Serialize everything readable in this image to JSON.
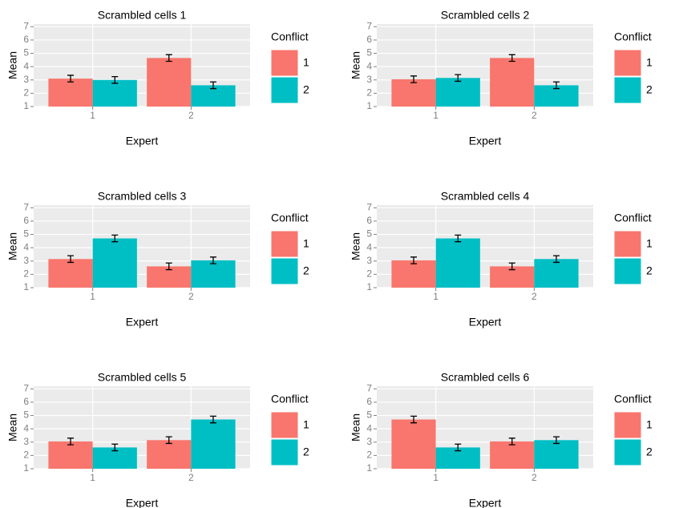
{
  "chart_data": [
    {
      "type": "bar",
      "title": "Scrambled cells 1",
      "x_label": "Expert",
      "y_label": "Mean",
      "legend_title": "Conflict",
      "categories": [
        "1",
        "2"
      ],
      "series": [
        {
          "name": "1",
          "color": "#F8766D",
          "values": [
            3.1,
            4.65
          ],
          "errors": [
            0.25,
            0.25
          ]
        },
        {
          "name": "2",
          "color": "#00BFC4",
          "values": [
            3.0,
            2.6
          ],
          "errors": [
            0.25,
            0.25
          ]
        }
      ],
      "ylim": [
        1,
        7.2
      ],
      "yticks": [
        1,
        2,
        3,
        4,
        5,
        6,
        7
      ],
      "grid": true
    },
    {
      "type": "bar",
      "title": "Scrambled cells 2",
      "x_label": "Expert",
      "y_label": "Mean",
      "legend_title": "Conflict",
      "categories": [
        "1",
        "2"
      ],
      "series": [
        {
          "name": "1",
          "color": "#F8766D",
          "values": [
            3.05,
            4.65
          ],
          "errors": [
            0.25,
            0.25
          ]
        },
        {
          "name": "2",
          "color": "#00BFC4",
          "values": [
            3.15,
            2.6
          ],
          "errors": [
            0.25,
            0.25
          ]
        }
      ],
      "ylim": [
        1,
        7.2
      ],
      "yticks": [
        1,
        2,
        3,
        4,
        5,
        6,
        7
      ],
      "grid": true
    },
    {
      "type": "bar",
      "title": "Scrambled cells 3",
      "x_label": "Expert",
      "y_label": "Mean",
      "legend_title": "Conflict",
      "categories": [
        "1",
        "2"
      ],
      "series": [
        {
          "name": "1",
          "color": "#F8766D",
          "values": [
            3.15,
            2.6
          ],
          "errors": [
            0.25,
            0.25
          ]
        },
        {
          "name": "2",
          "color": "#00BFC4",
          "values": [
            4.7,
            3.05
          ],
          "errors": [
            0.25,
            0.25
          ]
        }
      ],
      "ylim": [
        1,
        7.2
      ],
      "yticks": [
        1,
        2,
        3,
        4,
        5,
        6,
        7
      ],
      "grid": true
    },
    {
      "type": "bar",
      "title": "Scrambled cells 4",
      "x_label": "Expert",
      "y_label": "Mean",
      "legend_title": "Conflict",
      "categories": [
        "1",
        "2"
      ],
      "series": [
        {
          "name": "1",
          "color": "#F8766D",
          "values": [
            3.05,
            2.6
          ],
          "errors": [
            0.25,
            0.25
          ]
        },
        {
          "name": "2",
          "color": "#00BFC4",
          "values": [
            4.7,
            3.15
          ],
          "errors": [
            0.25,
            0.25
          ]
        }
      ],
      "ylim": [
        1,
        7.2
      ],
      "yticks": [
        1,
        2,
        3,
        4,
        5,
        6,
        7
      ],
      "grid": true
    },
    {
      "type": "bar",
      "title": "Scrambled cells 5",
      "x_label": "Expert",
      "y_label": "Mean",
      "legend_title": "Conflict",
      "categories": [
        "1",
        "2"
      ],
      "series": [
        {
          "name": "1",
          "color": "#F8766D",
          "values": [
            3.05,
            3.15
          ],
          "errors": [
            0.25,
            0.25
          ]
        },
        {
          "name": "2",
          "color": "#00BFC4",
          "values": [
            2.6,
            4.7
          ],
          "errors": [
            0.25,
            0.25
          ]
        }
      ],
      "ylim": [
        1,
        7.2
      ],
      "yticks": [
        1,
        2,
        3,
        4,
        5,
        6,
        7
      ],
      "grid": true
    },
    {
      "type": "bar",
      "title": "Scrambled cells 6",
      "x_label": "Expert",
      "y_label": "Mean",
      "legend_title": "Conflict",
      "categories": [
        "1",
        "2"
      ],
      "series": [
        {
          "name": "1",
          "color": "#F8766D",
          "values": [
            4.7,
            3.05
          ],
          "errors": [
            0.25,
            0.25
          ]
        },
        {
          "name": "2",
          "color": "#00BFC4",
          "values": [
            2.6,
            3.15
          ],
          "errors": [
            0.25,
            0.25
          ]
        }
      ],
      "ylim": [
        1,
        7.2
      ],
      "yticks": [
        1,
        2,
        3,
        4,
        5,
        6,
        7
      ],
      "grid": true
    }
  ]
}
